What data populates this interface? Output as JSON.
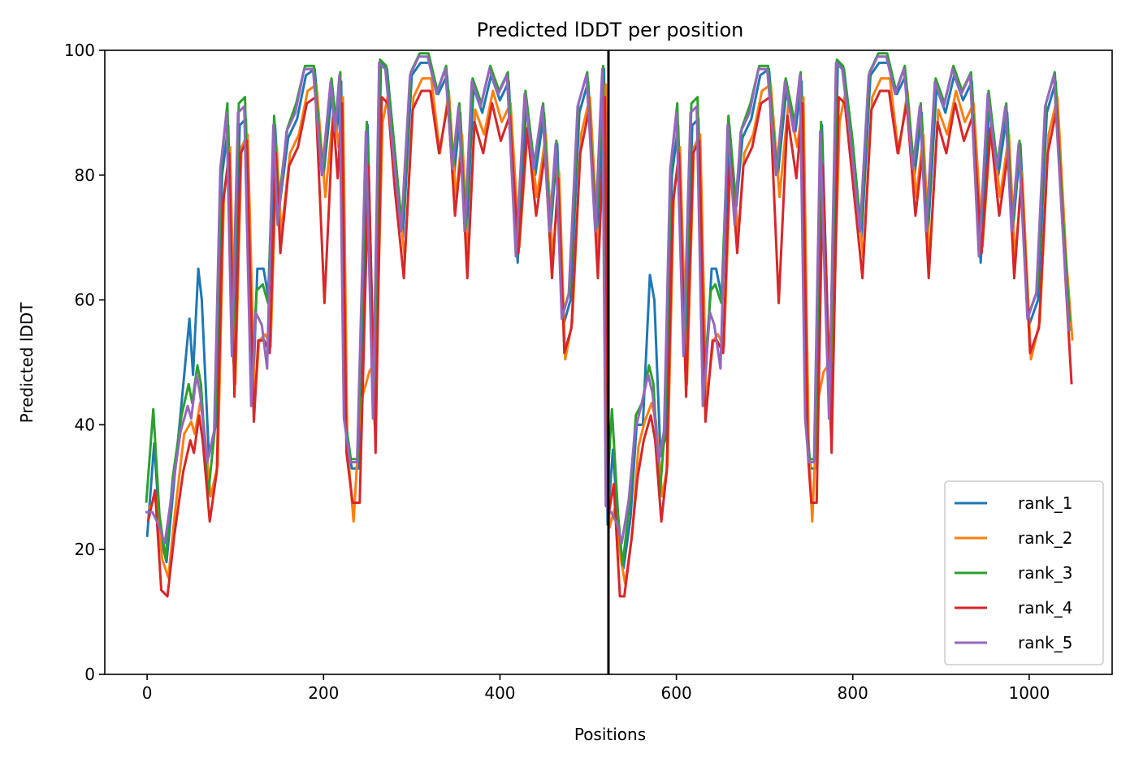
{
  "chart_data": {
    "type": "line",
    "title": "Predicted lDDT per position",
    "xlabel": "Positions",
    "ylabel": "Predicted lDDT",
    "xlim": [
      -48,
      1094
    ],
    "ylim": [
      0,
      100
    ],
    "xticks": [
      0,
      200,
      400,
      600,
      800,
      1000
    ],
    "yticks": [
      0,
      20,
      40,
      60,
      80,
      100
    ],
    "grid": false,
    "legend_position": "lower-right",
    "chain_break": 523,
    "series": [
      {
        "name": "rank_1",
        "color": "#1f77b4",
        "dx": 0,
        "dy": 0,
        "x": [
          0,
          8,
          15,
          22,
          30,
          40,
          48,
          52,
          58,
          62,
          70,
          78,
          85,
          92,
          98,
          105,
          112,
          120,
          125,
          132,
          138,
          145,
          150,
          160,
          170,
          180,
          190,
          200,
          210,
          215,
          220,
          225,
          232,
          240,
          250,
          258,
          265,
          272,
          280,
          290,
          300,
          310,
          320,
          330,
          340,
          348,
          355,
          362,
          370,
          380,
          390,
          400,
          410,
          420,
          430,
          440,
          450,
          458,
          465,
          472,
          480,
          490,
          500,
          510,
          518,
          522,
          528,
          535,
          540,
          548,
          555,
          562,
          570,
          575,
          582,
          588,
          595,
          602,
          610,
          618,
          625,
          632,
          640,
          645,
          652,
          660,
          668,
          675,
          685,
          695,
          705,
          715,
          725,
          735,
          742,
          748,
          752,
          758,
          765,
          775,
          783,
          790,
          800,
          810,
          820,
          830,
          840,
          850,
          860,
          870,
          878,
          885,
          895,
          905,
          915,
          925,
          935,
          945,
          955,
          965,
          975,
          982,
          990,
          1000,
          1010,
          1020,
          1030,
          1040,
          1047
        ],
        "y": [
          22,
          37,
          22,
          18,
          30,
          45,
          57,
          48,
          65,
          60,
          35,
          40,
          80,
          88,
          50,
          88,
          89,
          45,
          65,
          65,
          60,
          88,
          75,
          86,
          89,
          96,
          97,
          80,
          94,
          87,
          95,
          40,
          33,
          33,
          88,
          40,
          98,
          97,
          85,
          70,
          96,
          98,
          98,
          93,
          96,
          80,
          90,
          70,
          94,
          90,
          96,
          92,
          95,
          66,
          92,
          80,
          90,
          72,
          85,
          56,
          60,
          90,
          95,
          70,
          97,
          24,
          36,
          22,
          17,
          25,
          40,
          40,
          64,
          60,
          35,
          38,
          80,
          88,
          50,
          88,
          89,
          45,
          65,
          65,
          60,
          88,
          75,
          86,
          89,
          96,
          97,
          80,
          94,
          87,
          95,
          40,
          33,
          33,
          88,
          40,
          98,
          97,
          85,
          70,
          96,
          98,
          98,
          93,
          96,
          80,
          90,
          70,
          94,
          90,
          96,
          92,
          95,
          66,
          92,
          80,
          90,
          72,
          85,
          56,
          60,
          90,
          95,
          70,
          55
        ]
      },
      {
        "name": "rank_2",
        "color": "#ff7f0e",
        "dx": 2,
        "dy": -1.5,
        "x": [
          0,
          8,
          15,
          22,
          30,
          40,
          48,
          52,
          58,
          62,
          70,
          78,
          85,
          92,
          98,
          105,
          112,
          120,
          125,
          132,
          138,
          145,
          150,
          160,
          170,
          180,
          190,
          200,
          210,
          215,
          220,
          225,
          232,
          240,
          250,
          258,
          265,
          272,
          280,
          290,
          300,
          310,
          320,
          330,
          340,
          348,
          355,
          362,
          370,
          380,
          390,
          400,
          410,
          420,
          430,
          440,
          450,
          458,
          465,
          472,
          480,
          490,
          500,
          510,
          518,
          522,
          528,
          535,
          540,
          548,
          555,
          562,
          570,
          575,
          582,
          588,
          595,
          602,
          610,
          618,
          625,
          632,
          640,
          645,
          652,
          660,
          668,
          675,
          685,
          695,
          705,
          715,
          725,
          735,
          742,
          748,
          752,
          758,
          765,
          775,
          783,
          790,
          800,
          810,
          820,
          830,
          840,
          850,
          860,
          870,
          878,
          885,
          895,
          905,
          915,
          925,
          935,
          945,
          955,
          965,
          975,
          982,
          990,
          1000,
          1010,
          1020,
          1030,
          1040,
          1047
        ],
        "y": [
          28,
          30,
          20,
          17,
          28,
          40,
          42,
          40,
          45,
          42,
          30,
          35,
          78,
          86,
          48,
          86,
          88,
          45,
          55,
          56,
          54,
          86,
          72,
          85,
          88,
          95,
          96,
          78,
          93,
          86,
          94,
          38,
          26,
          45,
          50,
          52,
          90,
          95,
          83,
          68,
          94,
          97,
          97,
          85,
          95,
          78,
          88,
          68,
          92,
          88,
          95,
          90,
          93,
          70,
          90,
          78,
          88,
          68,
          82,
          52,
          58,
          88,
          94,
          68,
          96,
          25,
          28,
          20,
          16,
          24,
          38,
          42,
          45,
          42,
          30,
          35,
          78,
          86,
          48,
          86,
          88,
          45,
          55,
          56,
          54,
          86,
          72,
          85,
          88,
          95,
          96,
          78,
          93,
          86,
          94,
          38,
          26,
          45,
          50,
          52,
          90,
          95,
          83,
          68,
          94,
          97,
          97,
          85,
          95,
          78,
          88,
          68,
          92,
          88,
          95,
          90,
          93,
          70,
          90,
          78,
          88,
          68,
          82,
          52,
          58,
          88,
          94,
          68,
          55
        ]
      },
      {
        "name": "rank_3",
        "color": "#2ca02c",
        "dx": -1,
        "dy": 1.5,
        "x": [
          0,
          8,
          15,
          22,
          30,
          40,
          48,
          52,
          58,
          62,
          70,
          78,
          85,
          92,
          98,
          105,
          112,
          120,
          125,
          132,
          138,
          145,
          150,
          160,
          170,
          180,
          190,
          200,
          210,
          215,
          220,
          225,
          232,
          240,
          250,
          258,
          265,
          272,
          280,
          290,
          300,
          310,
          320,
          330,
          340,
          348,
          355,
          362,
          370,
          380,
          390,
          400,
          410,
          420,
          430,
          440,
          450,
          458,
          465,
          472,
          480,
          490,
          500,
          510,
          518,
          522,
          528,
          535,
          540,
          548,
          555,
          562,
          570,
          575,
          582,
          588,
          595,
          602,
          610,
          618,
          625,
          632,
          640,
          645,
          652,
          660,
          668,
          675,
          685,
          695,
          705,
          715,
          725,
          735,
          742,
          748,
          752,
          758,
          765,
          775,
          783,
          790,
          800,
          810,
          820,
          830,
          840,
          850,
          860,
          870,
          878,
          885,
          895,
          905,
          915,
          925,
          935,
          945,
          955,
          965,
          975,
          982,
          990,
          1000,
          1010,
          1020,
          1030,
          1040,
          1047
        ],
        "y": [
          26,
          41,
          24,
          17,
          30,
          40,
          45,
          42,
          48,
          45,
          27,
          38,
          80,
          90,
          50,
          90,
          91,
          45,
          60,
          61,
          58,
          88,
          74,
          86,
          90,
          96,
          96,
          79,
          94,
          87,
          95,
          40,
          33,
          33,
          87,
          41,
          97,
          96,
          85,
          70,
          95,
          98,
          98,
          92,
          96,
          80,
          90,
          70,
          94,
          90,
          96,
          92,
          95,
          68,
          92,
          80,
          90,
          70,
          84,
          56,
          60,
          90,
          95,
          70,
          96,
          27,
          41,
          24,
          16,
          26,
          40,
          42,
          48,
          45,
          27,
          38,
          80,
          90,
          50,
          90,
          91,
          45,
          60,
          61,
          58,
          88,
          74,
          86,
          90,
          96,
          96,
          79,
          94,
          87,
          95,
          40,
          33,
          33,
          87,
          41,
          97,
          96,
          85,
          70,
          95,
          98,
          98,
          92,
          96,
          80,
          90,
          70,
          94,
          90,
          96,
          92,
          95,
          68,
          92,
          80,
          90,
          70,
          84,
          56,
          60,
          90,
          95,
          70,
          55
        ]
      },
      {
        "name": "rank_4",
        "color": "#d62728",
        "dx": 1,
        "dy": -2.5,
        "x": [
          0,
          8,
          15,
          22,
          30,
          40,
          48,
          52,
          58,
          62,
          70,
          78,
          85,
          92,
          98,
          105,
          112,
          120,
          125,
          132,
          138,
          145,
          150,
          160,
          170,
          180,
          190,
          200,
          210,
          215,
          220,
          225,
          232,
          240,
          250,
          258,
          265,
          272,
          280,
          290,
          300,
          310,
          320,
          330,
          340,
          348,
          355,
          362,
          370,
          380,
          390,
          400,
          410,
          420,
          430,
          440,
          450,
          458,
          465,
          472,
          480,
          490,
          500,
          510,
          518,
          522,
          528,
          535,
          540,
          548,
          555,
          562,
          570,
          575,
          582,
          588,
          595,
          602,
          610,
          618,
          625,
          632,
          640,
          645,
          652,
          660,
          668,
          675,
          685,
          695,
          705,
          715,
          725,
          735,
          742,
          748,
          752,
          758,
          765,
          775,
          783,
          790,
          800,
          810,
          820,
          830,
          840,
          850,
          860,
          870,
          878,
          885,
          895,
          905,
          915,
          925,
          935,
          945,
          955,
          965,
          975,
          982,
          990,
          1000,
          1010,
          1020,
          1030,
          1040,
          1047
        ],
        "y": [
          27,
          32,
          16,
          15,
          25,
          35,
          40,
          38,
          44,
          40,
          27,
          35,
          78,
          86,
          47,
          86,
          88,
          43,
          56,
          56,
          54,
          86,
          70,
          84,
          87,
          94,
          95,
          62,
          92,
          82,
          94,
          38,
          30,
          30,
          84,
          38,
          95,
          94,
          80,
          66,
          93,
          96,
          96,
          86,
          94,
          76,
          86,
          66,
          91,
          86,
          94,
          88,
          92,
          70,
          90,
          76,
          86,
          66,
          82,
          54,
          58,
          86,
          93,
          66,
          95,
          28,
          33,
          15,
          15,
          24,
          34,
          40,
          44,
          40,
          27,
          35,
          78,
          86,
          47,
          86,
          88,
          43,
          56,
          56,
          54,
          86,
          70,
          84,
          87,
          94,
          95,
          62,
          92,
          82,
          94,
          38,
          30,
          30,
          84,
          38,
          95,
          94,
          80,
          66,
          93,
          96,
          96,
          86,
          94,
          76,
          86,
          66,
          91,
          86,
          94,
          88,
          92,
          70,
          90,
          76,
          86,
          66,
          82,
          54,
          58,
          86,
          93,
          66,
          49
        ]
      },
      {
        "name": "rank_5",
        "color": "#9467bd",
        "dx": -2,
        "dy": 1,
        "x": [
          0,
          8,
          15,
          22,
          30,
          40,
          48,
          52,
          58,
          62,
          70,
          78,
          85,
          92,
          98,
          105,
          112,
          120,
          125,
          132,
          138,
          145,
          150,
          160,
          170,
          180,
          190,
          200,
          210,
          215,
          220,
          225,
          232,
          240,
          250,
          258,
          265,
          272,
          280,
          290,
          300,
          310,
          320,
          330,
          340,
          348,
          355,
          362,
          370,
          380,
          390,
          400,
          410,
          420,
          430,
          440,
          450,
          458,
          465,
          472,
          480,
          490,
          500,
          510,
          518,
          522,
          528,
          535,
          540,
          548,
          555,
          562,
          570,
          575,
          582,
          588,
          595,
          602,
          610,
          618,
          625,
          632,
          640,
          645,
          652,
          660,
          668,
          675,
          685,
          695,
          705,
          715,
          725,
          735,
          742,
          748,
          752,
          758,
          765,
          775,
          783,
          790,
          800,
          810,
          820,
          830,
          840,
          850,
          860,
          870,
          878,
          885,
          895,
          905,
          915,
          925,
          935,
          945,
          955,
          965,
          975,
          982,
          990,
          1000,
          1010,
          1020,
          1030,
          1040,
          1047
        ],
        "y": [
          25,
          25,
          23,
          20,
          28,
          38,
          42,
          40,
          47,
          44,
          33,
          38,
          80,
          89,
          50,
          89,
          90,
          42,
          57,
          55,
          48,
          87,
          71,
          86,
          89,
          96,
          96,
          79,
          94,
          86,
          95,
          40,
          33,
          33,
          86,
          40,
          97,
          96,
          84,
          70,
          95,
          98,
          98,
          92,
          96,
          80,
          90,
          70,
          94,
          90,
          96,
          92,
          95,
          66,
          92,
          80,
          90,
          70,
          84,
          56,
          60,
          90,
          95,
          70,
          96,
          26,
          25,
          23,
          20,
          27,
          38,
          42,
          47,
          44,
          33,
          38,
          80,
          89,
          50,
          89,
          90,
          42,
          57,
          55,
          48,
          87,
          71,
          86,
          89,
          96,
          96,
          79,
          94,
          86,
          95,
          40,
          33,
          33,
          86,
          40,
          97,
          96,
          84,
          70,
          95,
          98,
          98,
          92,
          96,
          80,
          90,
          70,
          94,
          90,
          96,
          92,
          95,
          66,
          92,
          80,
          90,
          70,
          84,
          56,
          60,
          90,
          95,
          70,
          54
        ]
      }
    ]
  }
}
